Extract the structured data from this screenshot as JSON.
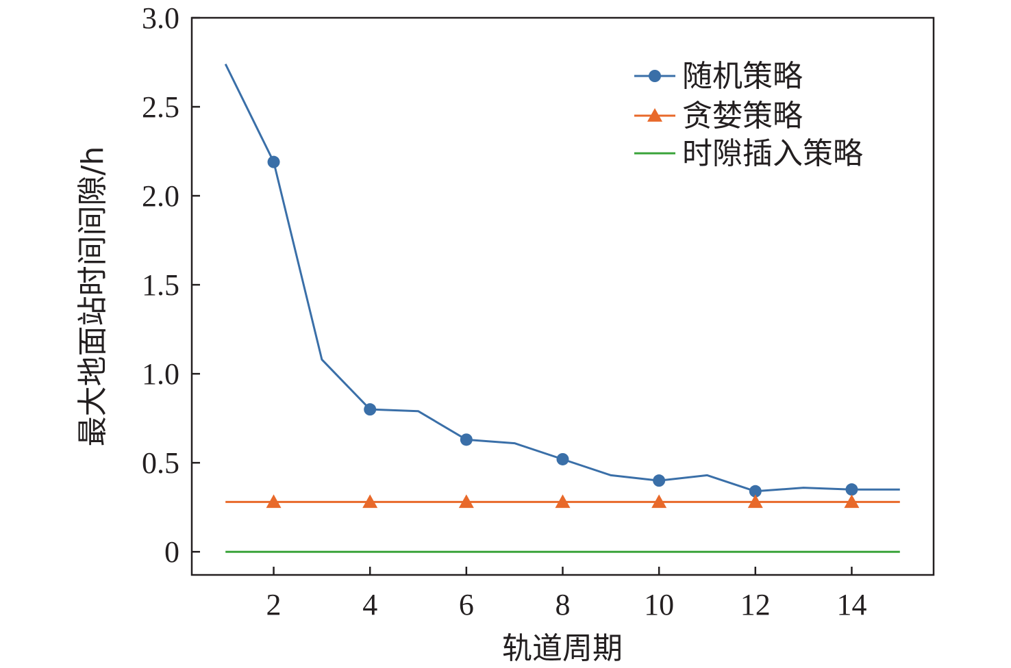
{
  "chart_data": {
    "type": "line",
    "xlabel": "轨道周期",
    "ylabel": "最大地面站时间间隙/h",
    "xlim": [
      0.3,
      15.7
    ],
    "ylim": [
      -0.13,
      3.0
    ],
    "xticks": [
      2,
      4,
      6,
      8,
      10,
      12,
      14
    ],
    "xtick_labels": [
      "2",
      "4",
      "6",
      "8",
      "10",
      "12",
      "14"
    ],
    "yticks": [
      0,
      0.5,
      1.0,
      1.5,
      2.0,
      2.5,
      3.0
    ],
    "ytick_labels": [
      "0",
      "0.5",
      "1.0",
      "1.5",
      "2.0",
      "2.5",
      "3.0"
    ],
    "grid": false,
    "legend_position": "top-right",
    "x": [
      1,
      2,
      3,
      4,
      5,
      6,
      7,
      8,
      9,
      10,
      11,
      12,
      13,
      14,
      15
    ],
    "series": [
      {
        "name": "随机策略",
        "color": "#3a6fa8",
        "marker": "circle",
        "values": [
          2.74,
          2.19,
          1.08,
          0.8,
          0.79,
          0.63,
          0.61,
          0.52,
          0.43,
          0.4,
          0.43,
          0.34,
          0.36,
          0.35,
          0.35
        ],
        "marker_x": [
          2,
          4,
          6,
          8,
          10,
          12,
          14
        ]
      },
      {
        "name": "贪婪策略",
        "color": "#e8692a",
        "marker": "triangle",
        "values": [
          0.28,
          0.28,
          0.28,
          0.28,
          0.28,
          0.28,
          0.28,
          0.28,
          0.28,
          0.28,
          0.28,
          0.28,
          0.28,
          0.28,
          0.28
        ],
        "marker_x": [
          2,
          4,
          6,
          8,
          10,
          12,
          14
        ]
      },
      {
        "name": "时隙插入策略",
        "color": "#3aa33a",
        "marker": "none",
        "values": [
          0,
          0,
          0,
          0,
          0,
          0,
          0,
          0,
          0,
          0,
          0,
          0,
          0,
          0,
          0
        ],
        "marker_x": []
      }
    ]
  }
}
